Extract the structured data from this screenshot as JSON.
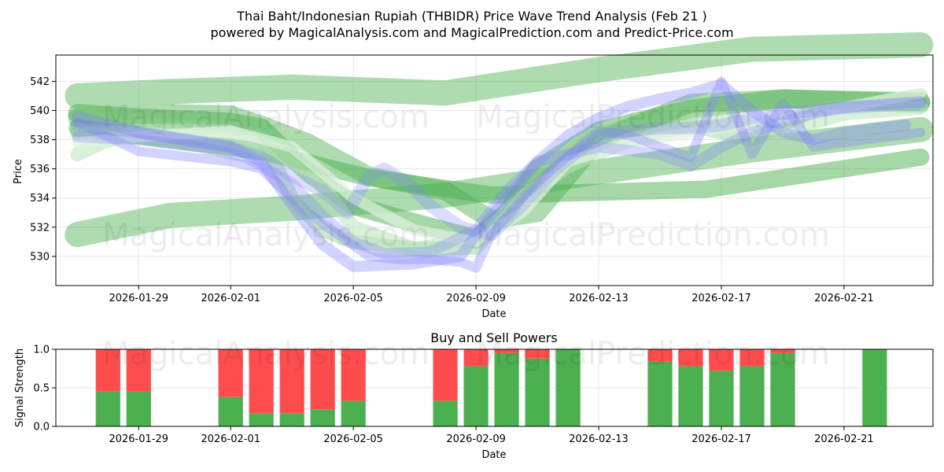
{
  "title_line1": "Thai Baht/Indonesian Rupiah (THBIDR) Price Wave Trend Analysis (Feb 21 )",
  "title_line2": "powered by MagicalAnalysis.com and MagicalPrediction.com and Predict-Price.com",
  "watermarks": [
    "MagicalAnalysis.com",
    "MagicalPrediction.com",
    "MagicalAnalysis.com",
    "MagicalPrediction.com",
    "MagicalAnalysis.com",
    "MagicalPrediction.com"
  ],
  "chart_data": [
    {
      "type": "line",
      "title": "",
      "xlabel": "Date",
      "ylabel": "Price",
      "x_range_days": [
        -4.7,
        23.9
      ],
      "ylim": [
        528.0,
        543.8
      ],
      "x_ticks": [
        {
          "day": -2,
          "label": "2026-01-29"
        },
        {
          "day": 1,
          "label": "2026-02-01"
        },
        {
          "day": 5,
          "label": "2026-02-05"
        },
        {
          "day": 9,
          "label": "2026-02-09"
        },
        {
          "day": 13,
          "label": "2026-02-13"
        },
        {
          "day": 17,
          "label": "2026-02-17"
        },
        {
          "day": 21,
          "label": "2026-02-21"
        }
      ],
      "y_ticks": [
        530,
        532,
        534,
        536,
        538,
        540,
        542
      ],
      "grid": true,
      "series": [
        {
          "name": "upper-band",
          "color": "#4caf50",
          "opacity": 0.45,
          "width": 32,
          "x": [
            -4.0,
            -1.0,
            3.0,
            8.0,
            13.0,
            18.0,
            23.5
          ],
          "y": [
            541.0,
            541.3,
            541.6,
            541.2,
            542.8,
            544.2,
            544.5
          ]
        },
        {
          "name": "lower-band",
          "color": "#4caf50",
          "opacity": 0.45,
          "width": 32,
          "x": [
            -4.0,
            -1.0,
            3.0,
            8.0,
            13.0,
            18.0,
            23.5
          ],
          "y": [
            531.5,
            532.8,
            533.3,
            534.2,
            535.8,
            537.3,
            538.7
          ]
        },
        {
          "name": "middle-band",
          "color": "#4caf50",
          "opacity": 0.5,
          "width": 22,
          "x": [
            -4.0,
            2.0,
            5.5,
            9.5,
            16.5,
            23.5
          ],
          "y": [
            538.8,
            537.2,
            535.4,
            534.2,
            534.6,
            536.8
          ]
        },
        {
          "name": "wave-a",
          "color": "#4caf50",
          "opacity": 0.45,
          "width": 24,
          "x": [
            -4.0,
            -1.0,
            1.0,
            2.0,
            3.5,
            5.5,
            8.0,
            9.5,
            11.0,
            13.0,
            16.0,
            19.0,
            23.5
          ],
          "y": [
            539.5,
            539.8,
            539.7,
            539.0,
            537.8,
            535.5,
            534.5,
            532.5,
            533.0,
            538.0,
            540.5,
            540.8,
            540.5
          ]
        },
        {
          "name": "wave-b",
          "color": "#4caf50",
          "opacity": 0.5,
          "width": 24,
          "x": [
            -4.0,
            -2.0,
            1.0,
            2.0,
            3.5,
            5.0,
            7.0,
            9.0,
            10.0,
            11.0,
            13.0,
            16.0,
            19.0,
            23.5
          ],
          "y": [
            539.8,
            539.5,
            539.2,
            538.8,
            535.8,
            533.5,
            532.3,
            531.2,
            533.0,
            536.0,
            538.6,
            540.1,
            540.8,
            540.6
          ]
        },
        {
          "name": "wave-c",
          "color": "#8fce8f",
          "opacity": 0.45,
          "width": 18,
          "x": [
            -4.0,
            -2.0,
            1.0,
            2.0,
            3.0,
            4.0,
            5.0,
            7.0,
            9.0,
            10.0,
            11.0,
            13.0,
            16.0,
            18.0,
            20.0,
            23.5
          ],
          "y": [
            538.5,
            539.0,
            538.8,
            538.2,
            534.0,
            531.8,
            531.0,
            530.5,
            530.6,
            533.0,
            535.5,
            538.5,
            539.0,
            538.0,
            540.0,
            541.0
          ]
        },
        {
          "name": "wave-d",
          "color": "#b9e3b9",
          "opacity": 0.55,
          "width": 18,
          "x": [
            -4.0,
            -3.2,
            -2.0,
            1.0,
            2.5,
            4.0,
            5.0,
            7.0,
            9.0,
            10.5,
            12.0,
            14.0,
            17.0,
            19.0,
            21.0,
            23.5
          ],
          "y": [
            537.0,
            537.8,
            538.6,
            538.4,
            537.3,
            534.8,
            532.0,
            530.5,
            531.2,
            534.0,
            536.2,
            538.0,
            539.5,
            538.6,
            539.8,
            540.2
          ]
        },
        {
          "name": "wave-e",
          "color": "#dff2df",
          "opacity": 0.7,
          "width": 14,
          "x": [
            -4.0,
            -2.0,
            1.0,
            3.0,
            5.0,
            7.0,
            9.0,
            10.5,
            12.0,
            14.0,
            17.0,
            19.0,
            21.0,
            23.5
          ],
          "y": [
            537.8,
            538.2,
            538.6,
            537.5,
            534.0,
            531.8,
            531.0,
            533.0,
            536.5,
            537.8,
            538.8,
            539.5,
            540.2,
            541.2
          ]
        },
        {
          "name": "blue-1",
          "color": "#8080ff",
          "opacity": 0.35,
          "width": 14,
          "x": [
            -4.0,
            -2.0,
            1.0,
            2.0,
            3.0,
            4.0,
            5.0,
            7.0,
            8.5,
            9.0,
            10.0,
            11.0,
            12.0,
            13.0,
            14.0,
            15.0,
            16.0,
            17.0,
            18.0,
            19.0,
            20.0,
            21.0,
            23.0
          ],
          "y": [
            539.6,
            538.5,
            537.5,
            536.5,
            533.5,
            530.8,
            529.3,
            529.5,
            530.0,
            531.5,
            534.0,
            536.5,
            538.3,
            539.5,
            540.3,
            540.8,
            541.2,
            541.8,
            540.0,
            538.5,
            538.0,
            538.5,
            539.0
          ]
        },
        {
          "name": "blue-2",
          "color": "#8080ff",
          "opacity": 0.35,
          "width": 12,
          "x": [
            -4.0,
            -2.0,
            1.0,
            2.0,
            3.5,
            4.5,
            5.5,
            6.5,
            7.5,
            8.5,
            9.0,
            9.5,
            10.5,
            11.5,
            13.0,
            14.0,
            15.0,
            16.0,
            17.0,
            18.0,
            19.0,
            20.0,
            21.0,
            23.5
          ],
          "y": [
            539.2,
            537.2,
            536.5,
            536.0,
            533.0,
            531.5,
            530.0,
            529.8,
            529.8,
            529.6,
            529.2,
            531.5,
            534.0,
            536.0,
            538.6,
            538.3,
            537.5,
            536.8,
            542.0,
            537.0,
            540.5,
            537.5,
            537.8,
            538.5
          ]
        },
        {
          "name": "blue-3",
          "color": "#8080ff",
          "opacity": 0.3,
          "width": 14,
          "x": [
            -4.0,
            -2.0,
            0.0,
            1.5,
            3.0,
            4.0,
            5.0,
            6.0,
            7.5,
            9.0,
            10.0,
            11.0,
            12.0,
            13.0,
            15.0,
            16.0,
            17.0,
            18.0,
            19.0,
            20.0,
            21.0,
            23.5
          ],
          "y": [
            538.2,
            538.0,
            537.5,
            536.8,
            535.0,
            532.8,
            531.0,
            530.2,
            530.3,
            531.8,
            534.5,
            536.5,
            537.0,
            537.5,
            537.0,
            536.2,
            537.5,
            538.5,
            539.2,
            539.8,
            540.2,
            540.6
          ]
        },
        {
          "name": "blue-4",
          "color": "#8080ff",
          "opacity": 0.28,
          "width": 16,
          "x": [
            -4.0,
            -2.0,
            1.0,
            2.0,
            3.0,
            4.0,
            4.8,
            5.5,
            6.0,
            6.8,
            7.5,
            8.5,
            9.5,
            10.5,
            11.5,
            12.5,
            13.5,
            15.0,
            16.0,
            17.0,
            18.0,
            19.0,
            20.0,
            21.0,
            23.5
          ],
          "y": [
            539.0,
            538.5,
            537.5,
            536.8,
            535.5,
            534.5,
            533.0,
            535.5,
            536.0,
            535.0,
            533.5,
            532.0,
            531.5,
            533.5,
            535.8,
            537.5,
            538.5,
            538.8,
            538.8,
            539.0,
            539.5,
            539.8,
            540.0,
            540.2,
            540.5
          ]
        }
      ]
    },
    {
      "type": "bar",
      "title": "Buy and Sell Powers",
      "xlabel": "Date",
      "ylabel": "Signal Strength",
      "x_range_days": [
        -4.7,
        23.9
      ],
      "ylim": [
        0,
        1.0
      ],
      "x_ticks": [
        {
          "day": -2,
          "label": "2026-01-29"
        },
        {
          "day": 1,
          "label": "2026-02-01"
        },
        {
          "day": 5,
          "label": "2026-02-05"
        },
        {
          "day": 9,
          "label": "2026-02-09"
        },
        {
          "day": 13,
          "label": "2026-02-13"
        },
        {
          "day": 17,
          "label": "2026-02-17"
        },
        {
          "day": 21,
          "label": "2026-02-21"
        }
      ],
      "y_ticks": [
        0.0,
        0.5,
        1.0
      ],
      "grid": true,
      "buy_color": "#4caf50",
      "sell_color": "#ff4d4d",
      "bars": [
        {
          "day": -3,
          "buy": 0.45
        },
        {
          "day": -2,
          "buy": 0.45
        },
        {
          "day": 1,
          "buy": 0.38
        },
        {
          "day": 2,
          "buy": 0.17
        },
        {
          "day": 3,
          "buy": 0.17
        },
        {
          "day": 4,
          "buy": 0.22
        },
        {
          "day": 5,
          "buy": 0.33
        },
        {
          "day": 8,
          "buy": 0.33
        },
        {
          "day": 9,
          "buy": 0.78
        },
        {
          "day": 10,
          "buy": 0.95
        },
        {
          "day": 11,
          "buy": 0.88
        },
        {
          "day": 12,
          "buy": 1.0
        },
        {
          "day": 15,
          "buy": 0.84
        },
        {
          "day": 16,
          "buy": 0.78
        },
        {
          "day": 17,
          "buy": 0.72
        },
        {
          "day": 18,
          "buy": 0.78
        },
        {
          "day": 19,
          "buy": 0.95
        },
        {
          "day": 22,
          "buy": 1.0
        }
      ]
    }
  ]
}
